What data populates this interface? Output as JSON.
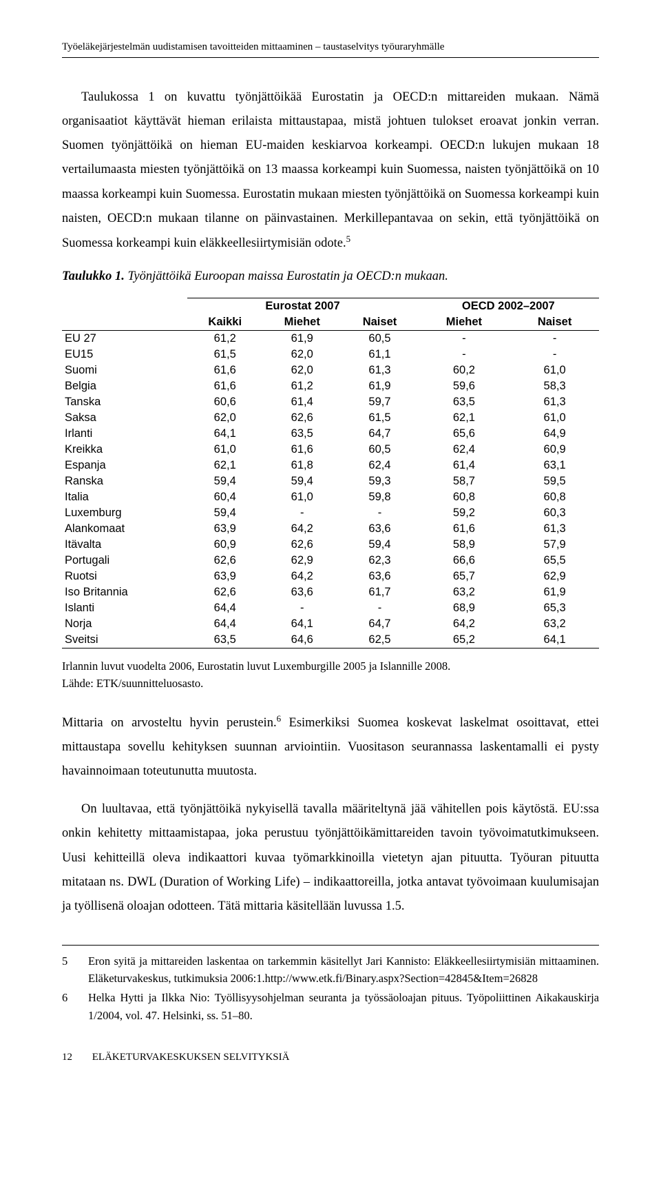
{
  "header": {
    "running_title": "Työeläkejärjestelmän uudistamisen tavoitteiden mittaaminen – taustaselvitys työuraryhmälle"
  },
  "paragraphs": {
    "p1": "Taulukossa 1 on kuvattu työnjättöikää Eurostatin ja OECD:n mittareiden mukaan. Nämä organisaatiot käyttävät hieman erilaista mittaustapaa, mistä johtuen tulokset eroavat jonkin verran. Suomen työnjättöikä on hieman EU-maiden keskiarvoa korkeampi. OECD:n lukujen mukaan 18 vertailumaasta miesten työnjättöikä on 13 maassa korkeampi kuin Suomessa, naisten työnjättöikä on 10 maassa korkeampi kuin Suomessa. Eurostatin mukaan miesten työnjättöikä on Suomessa korkeampi kuin naisten, OECD:n mukaan tilanne on päinvastainen. Merkillepantavaa on sekin, että työnjättöikä on Suomessa korkeampi kuin eläkkeellesiirtymisiän odote.",
    "p1_sup": "5",
    "p2a": "Mittaria on arvosteltu hyvin perustein.",
    "p2_sup": "6",
    "p2b": " Esimerkiksi Suomea koskevat laskelmat osoittavat, ettei mittaustapa sovellu kehityksen suunnan arviointiin. Vuositason seurannassa laskentamalli ei pysty havainnoimaan toteutunutta muutosta.",
    "p3": "On luultavaa, että työnjättöikä nykyisellä tavalla määriteltynä jää vähitellen pois käytöstä. EU:ssa onkin kehitetty mittaamistapaa, joka perustuu työnjättöikämittareiden tavoin työvoimatutkimukseen. Uusi kehitteillä oleva indikaattori kuvaa työmarkkinoilla vietetyn ajan pituutta. Työuran pituutta mitataan ns. DWL (Duration of Working Life) – indikaattoreilla, jotka antavat työvoimaan kuulumisajan ja työllisenä oloajan odotteen. Tätä mittaria käsitellään luvussa 1.5."
  },
  "table": {
    "caption_label": "Taulukko 1.",
    "caption_text": " Työnjättöikä Euroopan maissa Eurostatin ja OECD:n mukaan.",
    "header_group1": "Eurostat 2007",
    "header_group2": "OECD 2002–2007",
    "col_kaikki": "Kaikki",
    "col_miehet": "Miehet",
    "col_naiset": "Naiset",
    "rows": [
      {
        "label": "EU 27",
        "k": "61,2",
        "m1": "61,9",
        "n1": "60,5",
        "m2": "-",
        "n2": "-"
      },
      {
        "label": "EU15",
        "k": "61,5",
        "m1": "62,0",
        "n1": "61,1",
        "m2": "-",
        "n2": "-"
      },
      {
        "label": "Suomi",
        "k": "61,6",
        "m1": "62,0",
        "n1": "61,3",
        "m2": "60,2",
        "n2": "61,0"
      },
      {
        "label": "Belgia",
        "k": "61,6",
        "m1": "61,2",
        "n1": "61,9",
        "m2": "59,6",
        "n2": "58,3"
      },
      {
        "label": "Tanska",
        "k": "60,6",
        "m1": "61,4",
        "n1": "59,7",
        "m2": "63,5",
        "n2": "61,3"
      },
      {
        "label": "Saksa",
        "k": "62,0",
        "m1": "62,6",
        "n1": "61,5",
        "m2": "62,1",
        "n2": "61,0"
      },
      {
        "label": "Irlanti",
        "k": "64,1",
        "m1": "63,5",
        "n1": "64,7",
        "m2": "65,6",
        "n2": "64,9"
      },
      {
        "label": "Kreikka",
        "k": "61,0",
        "m1": "61,6",
        "n1": "60,5",
        "m2": "62,4",
        "n2": "60,9"
      },
      {
        "label": "Espanja",
        "k": "62,1",
        "m1": "61,8",
        "n1": "62,4",
        "m2": "61,4",
        "n2": "63,1"
      },
      {
        "label": "Ranska",
        "k": "59,4",
        "m1": "59,4",
        "n1": "59,3",
        "m2": "58,7",
        "n2": "59,5"
      },
      {
        "label": "Italia",
        "k": "60,4",
        "m1": "61,0",
        "n1": "59,8",
        "m2": "60,8",
        "n2": "60,8"
      },
      {
        "label": "Luxemburg",
        "k": "59,4",
        "m1": "-",
        "n1": "-",
        "m2": "59,2",
        "n2": "60,3"
      },
      {
        "label": "Alankomaat",
        "k": "63,9",
        "m1": "64,2",
        "n1": "63,6",
        "m2": "61,6",
        "n2": "61,3"
      },
      {
        "label": "Itävalta",
        "k": "60,9",
        "m1": "62,6",
        "n1": "59,4",
        "m2": "58,9",
        "n2": "57,9"
      },
      {
        "label": "Portugali",
        "k": "62,6",
        "m1": "62,9",
        "n1": "62,3",
        "m2": "66,6",
        "n2": "65,5"
      },
      {
        "label": "Ruotsi",
        "k": "63,9",
        "m1": "64,2",
        "n1": "63,6",
        "m2": "65,7",
        "n2": "62,9"
      },
      {
        "label": "Iso Britannia",
        "k": "62,6",
        "m1": "63,6",
        "n1": "61,7",
        "m2": "63,2",
        "n2": "61,9"
      },
      {
        "label": "Islanti",
        "k": "64,4",
        "m1": "-",
        "n1": "-",
        "m2": "68,9",
        "n2": "65,3"
      },
      {
        "label": "Norja",
        "k": "64,4",
        "m1": "64,1",
        "n1": "64,7",
        "m2": "64,2",
        "n2": "63,2"
      },
      {
        "label": "Sveitsi",
        "k": "63,5",
        "m1": "64,6",
        "n1": "62,5",
        "m2": "65,2",
        "n2": "64,1"
      }
    ],
    "note_line1": "Irlannin luvut vuodelta 2006, Eurostatin luvut Luxemburgille 2005 ja Islannille 2008.",
    "note_line2": "Lähde: ETK/suunnitteluosasto."
  },
  "footnotes": {
    "n5": "5",
    "t5": "Eron syitä ja mittareiden laskentaa on tarkemmin käsitellyt Jari Kannisto: Eläkkeellesiirtymisiän mittaaminen. Eläketurvakeskus, tutkimuksia 2006:1.http://www.etk.fi/Binary.aspx?Section=42845&Item=26828",
    "n6": "6",
    "t6": "Helka Hytti ja Ilkka Nio: Työllisyysohjelman seuranta ja työssäoloajan pituus. Työpoliittinen Aikakauskirja 1/2004, vol. 47. Helsinki, ss. 51–80."
  },
  "footer": {
    "page_number": "12",
    "footer_text": "ELÄKETURVAKESKUKSEN SELVITYKSIÄ"
  }
}
